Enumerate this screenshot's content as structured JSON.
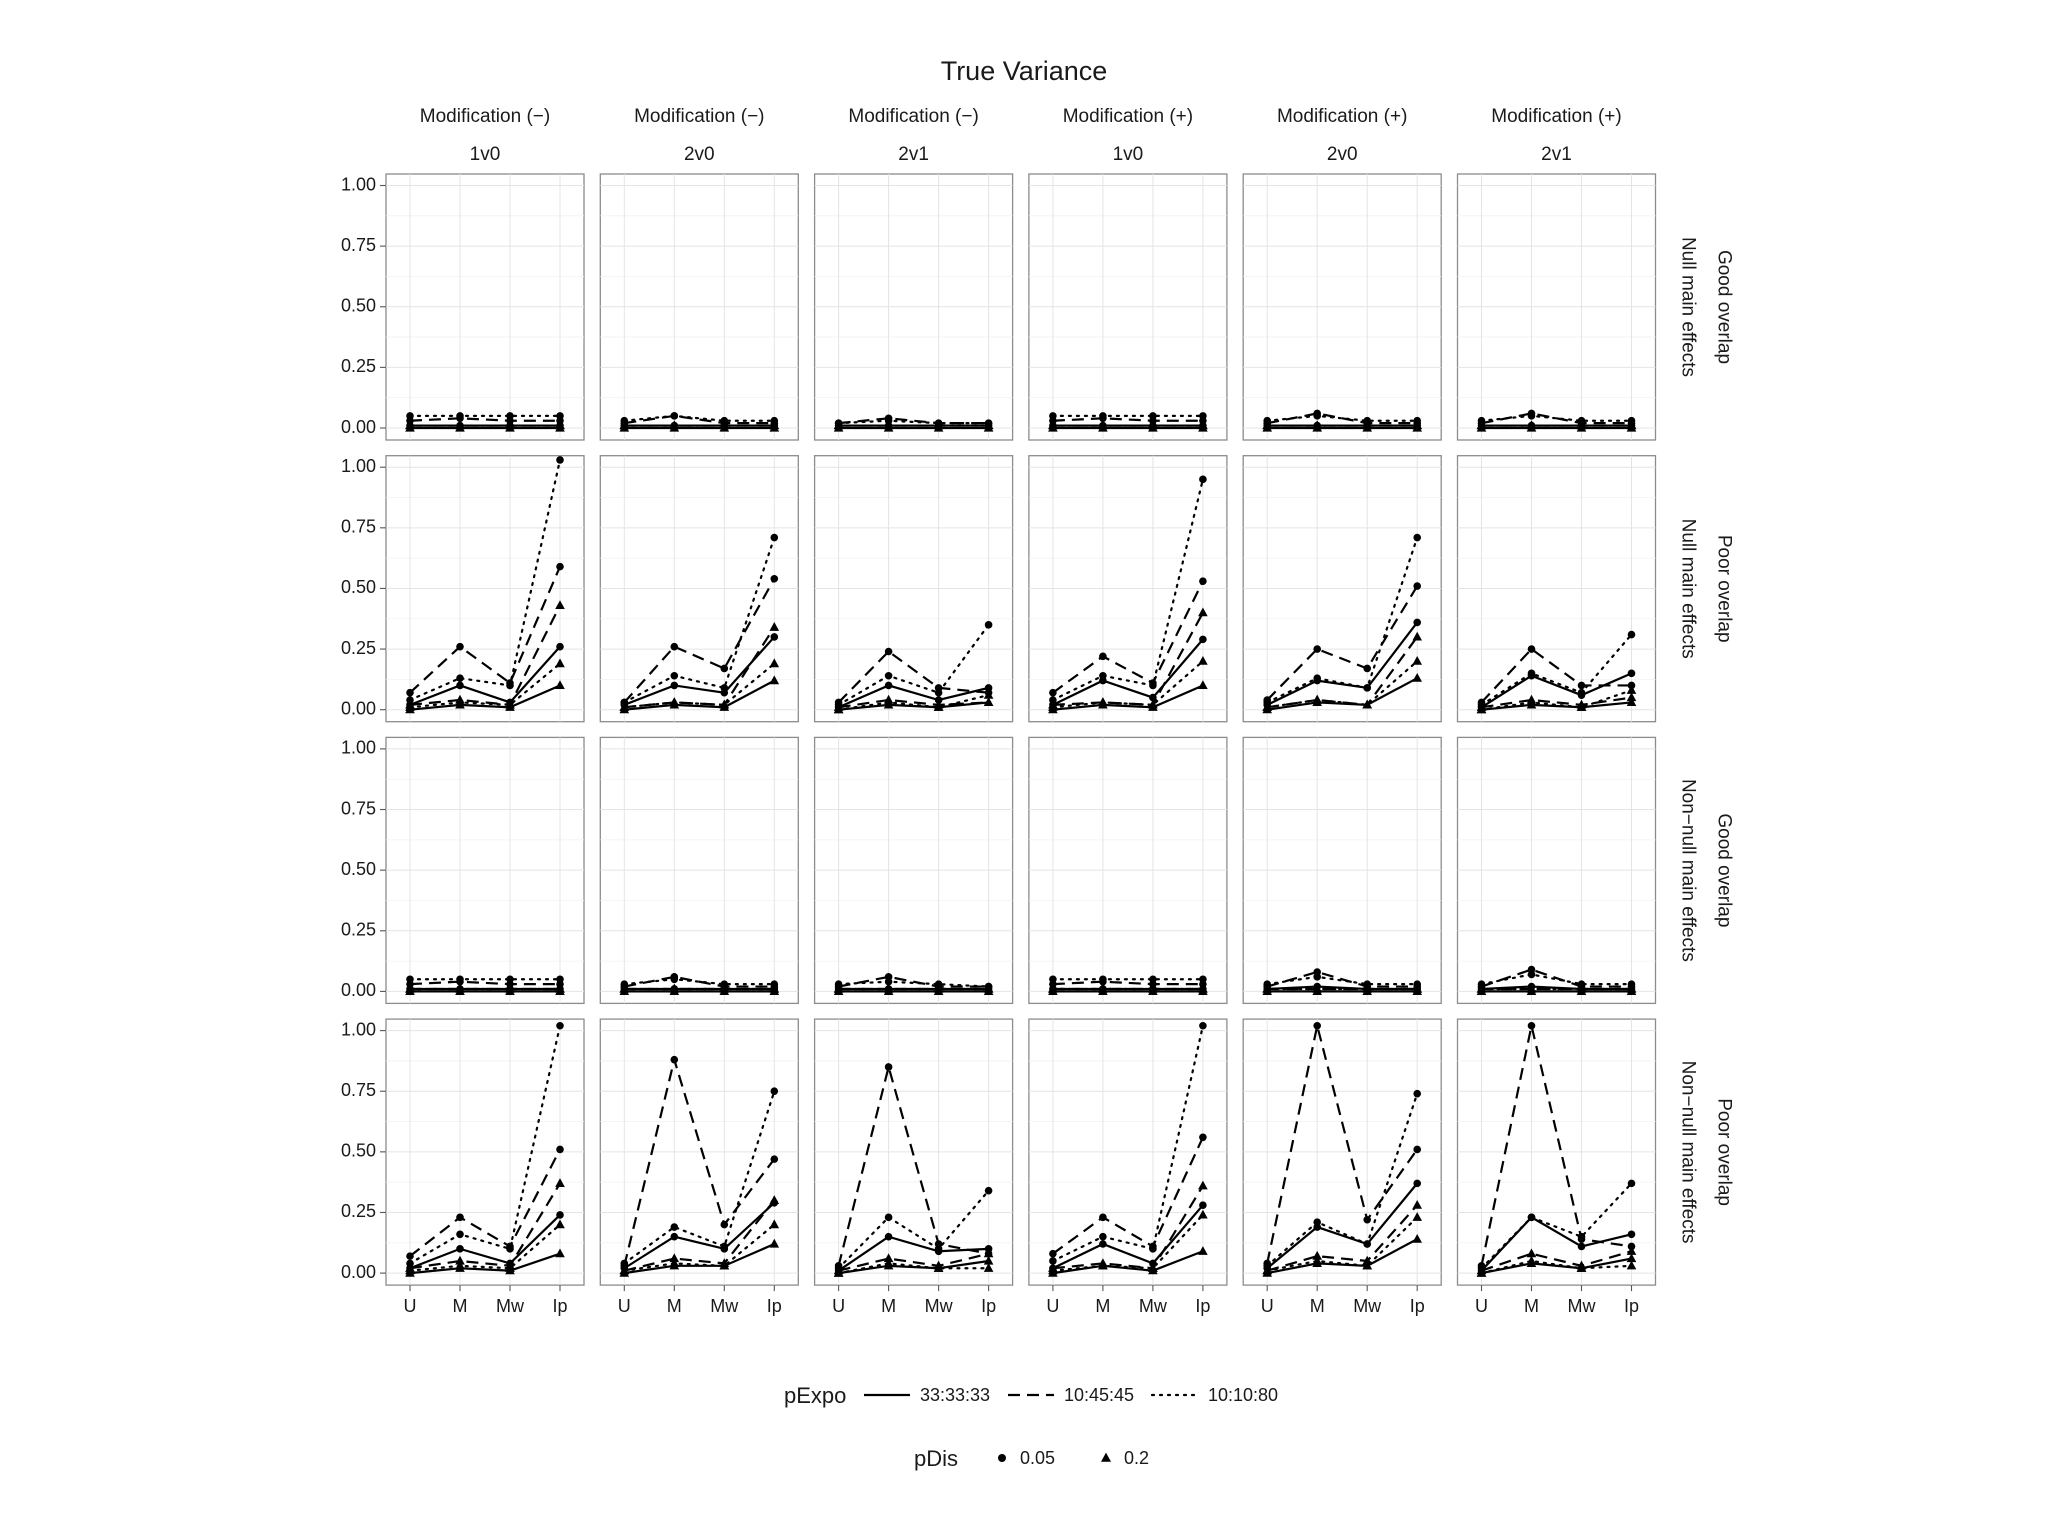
{
  "chart_data": {
    "type": "line",
    "title": "True Variance",
    "facet_columns": [
      {
        "top": "Modification (−)",
        "bottom": "1v0"
      },
      {
        "top": "Modification (−)",
        "bottom": "2v0"
      },
      {
        "top": "Modification (−)",
        "bottom": "2v1"
      },
      {
        "top": "Modification (+)",
        "bottom": "1v0"
      },
      {
        "top": "Modification (+)",
        "bottom": "2v0"
      },
      {
        "top": "Modification (+)",
        "bottom": "2v1"
      }
    ],
    "facet_rows": [
      {
        "inner": "Null main effects",
        "outer": "Good overlap"
      },
      {
        "inner": "Null main effects",
        "outer": "Poor overlap"
      },
      {
        "inner": "Non−null main effects",
        "outer": "Good overlap"
      },
      {
        "inner": "Non−null main effects",
        "outer": "Poor overlap"
      }
    ],
    "x_categories": [
      "U",
      "M",
      "Mw",
      "Ip"
    ],
    "y_ticks": [
      "0.00",
      "0.25",
      "0.50",
      "0.75",
      "1.00"
    ],
    "ylim": [
      0,
      1
    ],
    "legend": {
      "pExpo": {
        "title": "pExpo",
        "entries": [
          {
            "label": "33:33:33",
            "linetype": "solid"
          },
          {
            "label": "10:45:45",
            "linetype": "dashed"
          },
          {
            "label": "10:10:80",
            "linetype": "dotted"
          }
        ]
      },
      "pDis": {
        "title": "pDis",
        "entries": [
          {
            "label": "0.05",
            "shape": "circle"
          },
          {
            "label": "0.2",
            "shape": "triangle"
          }
        ]
      }
    },
    "series_keys": [
      {
        "pExpo": "33:33:33",
        "pDis": "0.05"
      },
      {
        "pExpo": "33:33:33",
        "pDis": "0.2"
      },
      {
        "pExpo": "10:45:45",
        "pDis": "0.05"
      },
      {
        "pExpo": "10:45:45",
        "pDis": "0.2"
      },
      {
        "pExpo": "10:10:80",
        "pDis": "0.05"
      },
      {
        "pExpo": "10:10:80",
        "pDis": "0.2"
      }
    ],
    "panels": [
      [
        [
          [
            0.01,
            0.01,
            0.01,
            0.01
          ],
          [
            0.0,
            0.0,
            0.0,
            0.0
          ],
          [
            0.03,
            0.04,
            0.03,
            0.03
          ],
          [
            0.01,
            0.01,
            0.01,
            0.01
          ],
          [
            0.05,
            0.05,
            0.05,
            0.05
          ],
          [
            0.01,
            0.01,
            0.01,
            0.01
          ]
        ],
        [
          [
            0.01,
            0.01,
            0.01,
            0.01
          ],
          [
            0.0,
            0.0,
            0.0,
            0.0
          ],
          [
            0.02,
            0.05,
            0.02,
            0.02
          ],
          [
            0.01,
            0.01,
            0.01,
            0.01
          ],
          [
            0.03,
            0.05,
            0.03,
            0.03
          ],
          [
            0.01,
            0.01,
            0.01,
            0.01
          ]
        ],
        [
          [
            0.01,
            0.01,
            0.01,
            0.01
          ],
          [
            0.0,
            0.0,
            0.0,
            0.0
          ],
          [
            0.02,
            0.04,
            0.02,
            0.02
          ],
          [
            0.01,
            0.01,
            0.01,
            0.01
          ],
          [
            0.02,
            0.03,
            0.02,
            0.02
          ],
          [
            0.01,
            0.01,
            0.01,
            0.01
          ]
        ],
        [
          [
            0.01,
            0.01,
            0.01,
            0.01
          ],
          [
            0.0,
            0.0,
            0.0,
            0.0
          ],
          [
            0.03,
            0.04,
            0.03,
            0.03
          ],
          [
            0.01,
            0.01,
            0.01,
            0.01
          ],
          [
            0.05,
            0.05,
            0.05,
            0.05
          ],
          [
            0.01,
            0.01,
            0.01,
            0.01
          ]
        ],
        [
          [
            0.01,
            0.01,
            0.01,
            0.01
          ],
          [
            0.0,
            0.0,
            0.0,
            0.0
          ],
          [
            0.02,
            0.06,
            0.02,
            0.02
          ],
          [
            0.01,
            0.01,
            0.01,
            0.01
          ],
          [
            0.03,
            0.05,
            0.03,
            0.03
          ],
          [
            0.01,
            0.01,
            0.01,
            0.01
          ]
        ],
        [
          [
            0.01,
            0.01,
            0.01,
            0.01
          ],
          [
            0.0,
            0.0,
            0.0,
            0.0
          ],
          [
            0.02,
            0.06,
            0.02,
            0.02
          ],
          [
            0.01,
            0.01,
            0.01,
            0.01
          ],
          [
            0.03,
            0.05,
            0.03,
            0.03
          ],
          [
            0.01,
            0.01,
            0.01,
            0.01
          ]
        ]
      ],
      [
        [
          [
            0.02,
            0.1,
            0.03,
            0.26
          ],
          [
            0.0,
            0.02,
            0.01,
            0.1
          ],
          [
            0.07,
            0.26,
            0.11,
            0.59
          ],
          [
            0.02,
            0.04,
            0.02,
            0.43
          ],
          [
            0.04,
            0.13,
            0.1,
            1.03
          ],
          [
            0.01,
            0.03,
            0.02,
            0.19
          ]
        ],
        [
          [
            0.02,
            0.1,
            0.07,
            0.3
          ],
          [
            0.0,
            0.02,
            0.01,
            0.12
          ],
          [
            0.03,
            0.26,
            0.17,
            0.54
          ],
          [
            0.01,
            0.03,
            0.02,
            0.34
          ],
          [
            0.03,
            0.14,
            0.09,
            0.71
          ],
          [
            0.01,
            0.03,
            0.02,
            0.19
          ]
        ],
        [
          [
            0.01,
            0.1,
            0.04,
            0.09
          ],
          [
            0.0,
            0.02,
            0.01,
            0.03
          ],
          [
            0.03,
            0.24,
            0.09,
            0.07
          ],
          [
            0.01,
            0.04,
            0.02,
            0.03
          ],
          [
            0.02,
            0.14,
            0.07,
            0.35
          ],
          [
            0.0,
            0.03,
            0.01,
            0.06
          ]
        ],
        [
          [
            0.02,
            0.12,
            0.05,
            0.29
          ],
          [
            0.0,
            0.02,
            0.01,
            0.1
          ],
          [
            0.07,
            0.22,
            0.11,
            0.53
          ],
          [
            0.02,
            0.03,
            0.02,
            0.4
          ],
          [
            0.04,
            0.14,
            0.1,
            0.95
          ],
          [
            0.01,
            0.03,
            0.02,
            0.2
          ]
        ],
        [
          [
            0.02,
            0.12,
            0.09,
            0.36
          ],
          [
            0.0,
            0.03,
            0.02,
            0.13
          ],
          [
            0.04,
            0.25,
            0.17,
            0.51
          ],
          [
            0.01,
            0.04,
            0.02,
            0.3
          ],
          [
            0.03,
            0.13,
            0.09,
            0.71
          ],
          [
            0.01,
            0.04,
            0.02,
            0.2
          ]
        ],
        [
          [
            0.01,
            0.14,
            0.06,
            0.15
          ],
          [
            0.0,
            0.02,
            0.01,
            0.03
          ],
          [
            0.03,
            0.25,
            0.1,
            0.1
          ],
          [
            0.01,
            0.04,
            0.02,
            0.05
          ],
          [
            0.02,
            0.15,
            0.07,
            0.31
          ],
          [
            0.0,
            0.03,
            0.01,
            0.08
          ]
        ]
      ],
      [
        [
          [
            0.01,
            0.01,
            0.01,
            0.01
          ],
          [
            0.0,
            0.0,
            0.0,
            0.0
          ],
          [
            0.03,
            0.04,
            0.03,
            0.03
          ],
          [
            0.01,
            0.01,
            0.01,
            0.01
          ],
          [
            0.05,
            0.05,
            0.05,
            0.05
          ],
          [
            0.01,
            0.01,
            0.01,
            0.01
          ]
        ],
        [
          [
            0.01,
            0.01,
            0.01,
            0.01
          ],
          [
            0.0,
            0.0,
            0.0,
            0.0
          ],
          [
            0.02,
            0.06,
            0.02,
            0.02
          ],
          [
            0.01,
            0.01,
            0.01,
            0.01
          ],
          [
            0.03,
            0.05,
            0.03,
            0.03
          ],
          [
            0.01,
            0.01,
            0.01,
            0.01
          ]
        ],
        [
          [
            0.01,
            0.01,
            0.01,
            0.01
          ],
          [
            0.0,
            0.0,
            0.0,
            0.0
          ],
          [
            0.02,
            0.06,
            0.02,
            0.02
          ],
          [
            0.01,
            0.01,
            0.01,
            0.01
          ],
          [
            0.03,
            0.04,
            0.03,
            0.02
          ],
          [
            0.01,
            0.01,
            0.01,
            0.01
          ]
        ],
        [
          [
            0.01,
            0.01,
            0.01,
            0.01
          ],
          [
            0.0,
            0.0,
            0.0,
            0.0
          ],
          [
            0.03,
            0.04,
            0.03,
            0.03
          ],
          [
            0.01,
            0.01,
            0.01,
            0.01
          ],
          [
            0.05,
            0.05,
            0.05,
            0.05
          ],
          [
            0.01,
            0.01,
            0.01,
            0.01
          ]
        ],
        [
          [
            0.01,
            0.02,
            0.01,
            0.01
          ],
          [
            0.0,
            0.0,
            0.0,
            0.0
          ],
          [
            0.02,
            0.08,
            0.02,
            0.02
          ],
          [
            0.01,
            0.01,
            0.01,
            0.01
          ],
          [
            0.03,
            0.06,
            0.03,
            0.03
          ],
          [
            0.01,
            0.01,
            0.01,
            0.01
          ]
        ],
        [
          [
            0.01,
            0.02,
            0.01,
            0.01
          ],
          [
            0.0,
            0.0,
            0.0,
            0.0
          ],
          [
            0.02,
            0.09,
            0.02,
            0.02
          ],
          [
            0.01,
            0.01,
            0.01,
            0.01
          ],
          [
            0.03,
            0.07,
            0.03,
            0.03
          ],
          [
            0.01,
            0.01,
            0.01,
            0.01
          ]
        ]
      ],
      [
        [
          [
            0.02,
            0.1,
            0.04,
            0.24
          ],
          [
            0.0,
            0.02,
            0.01,
            0.08
          ],
          [
            0.07,
            0.23,
            0.11,
            0.51
          ],
          [
            0.02,
            0.05,
            0.03,
            0.37
          ],
          [
            0.04,
            0.16,
            0.1,
            1.02
          ],
          [
            0.01,
            0.03,
            0.02,
            0.2
          ]
        ],
        [
          [
            0.02,
            0.15,
            0.1,
            0.29
          ],
          [
            0.0,
            0.03,
            0.03,
            0.12
          ],
          [
            0.03,
            0.88,
            0.2,
            0.47
          ],
          [
            0.01,
            0.06,
            0.04,
            0.3
          ],
          [
            0.04,
            0.19,
            0.11,
            0.75
          ],
          [
            0.01,
            0.04,
            0.03,
            0.2
          ]
        ],
        [
          [
            0.01,
            0.15,
            0.09,
            0.1
          ],
          [
            0.0,
            0.03,
            0.02,
            0.05
          ],
          [
            0.03,
            0.85,
            0.12,
            0.08
          ],
          [
            0.01,
            0.06,
            0.03,
            0.08
          ],
          [
            0.02,
            0.23,
            0.1,
            0.34
          ],
          [
            0.0,
            0.04,
            0.02,
            0.02
          ]
        ],
        [
          [
            0.02,
            0.12,
            0.04,
            0.28
          ],
          [
            0.0,
            0.03,
            0.01,
            0.09
          ],
          [
            0.08,
            0.23,
            0.11,
            0.56
          ],
          [
            0.02,
            0.04,
            0.02,
            0.36
          ],
          [
            0.05,
            0.15,
            0.1,
            1.02
          ],
          [
            0.01,
            0.03,
            0.02,
            0.24
          ]
        ],
        [
          [
            0.02,
            0.19,
            0.12,
            0.37
          ],
          [
            0.0,
            0.04,
            0.03,
            0.14
          ],
          [
            0.04,
            1.02,
            0.22,
            0.51
          ],
          [
            0.01,
            0.07,
            0.05,
            0.28
          ],
          [
            0.03,
            0.21,
            0.12,
            0.74
          ],
          [
            0.01,
            0.05,
            0.03,
            0.23
          ]
        ],
        [
          [
            0.01,
            0.23,
            0.11,
            0.16
          ],
          [
            0.0,
            0.04,
            0.02,
            0.06
          ],
          [
            0.03,
            1.02,
            0.14,
            0.11
          ],
          [
            0.01,
            0.08,
            0.03,
            0.09
          ],
          [
            0.02,
            0.23,
            0.15,
            0.37
          ],
          [
            0.0,
            0.05,
            0.02,
            0.03
          ]
        ]
      ]
    ]
  }
}
